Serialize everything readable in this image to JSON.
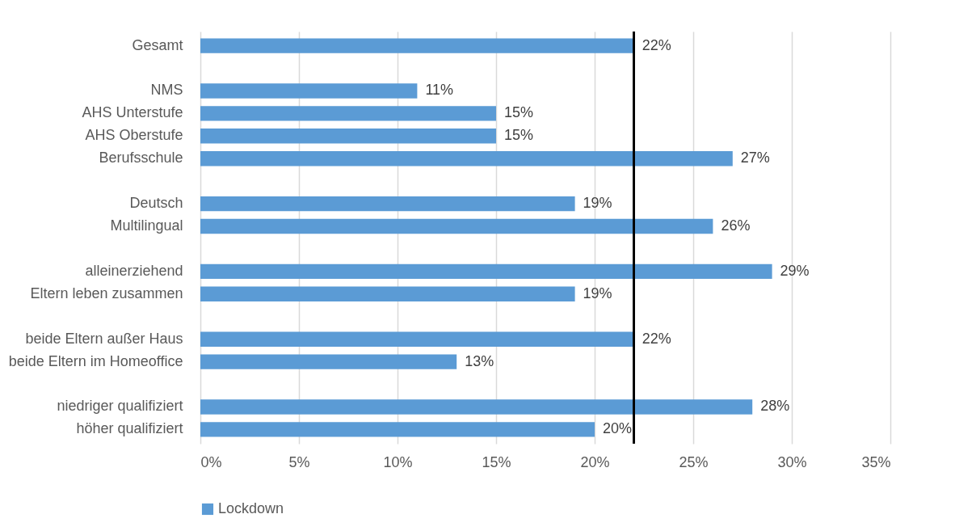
{
  "chart_data": {
    "type": "bar",
    "orientation": "horizontal",
    "categories": [
      "Gesamt",
      null,
      "NMS",
      "AHS Unterstufe",
      "AHS Oberstufe",
      "Berufsschule",
      null,
      "Deutsch",
      "Multilingual",
      null,
      "alleinerziehend",
      "Eltern leben zusammen",
      null,
      "beide Eltern außer Haus",
      "beide Eltern im Homeoffice",
      null,
      "niedriger qualifiziert",
      "höher qualifiziert"
    ],
    "series": [
      {
        "name": "Lockdown",
        "color": "#5b9bd5",
        "values": [
          22,
          null,
          11,
          15,
          15,
          27,
          null,
          19,
          26,
          null,
          29,
          19,
          null,
          22,
          13,
          null,
          28,
          20
        ],
        "value_labels": [
          "22%",
          null,
          "11%",
          "15%",
          "15%",
          "27%",
          null,
          "19%",
          "26%",
          null,
          "29%",
          "19%",
          null,
          "22%",
          "13%",
          null,
          "28%",
          "20%"
        ]
      }
    ],
    "xlim": [
      0,
      35
    ],
    "xticks": [
      {
        "value": 0,
        "label": "0%"
      },
      {
        "value": 5,
        "label": "5%"
      },
      {
        "value": 10,
        "label": "10%"
      },
      {
        "value": 15,
        "label": "15%"
      },
      {
        "value": 20,
        "label": "20%"
      },
      {
        "value": 25,
        "label": "25%"
      },
      {
        "value": 30,
        "label": "30%"
      },
      {
        "value": 35,
        "label": "35%"
      }
    ],
    "ref_lines": [
      {
        "axis": "x",
        "value": 22,
        "color": "#000000"
      }
    ],
    "grid": "x",
    "legend": "bottom"
  }
}
